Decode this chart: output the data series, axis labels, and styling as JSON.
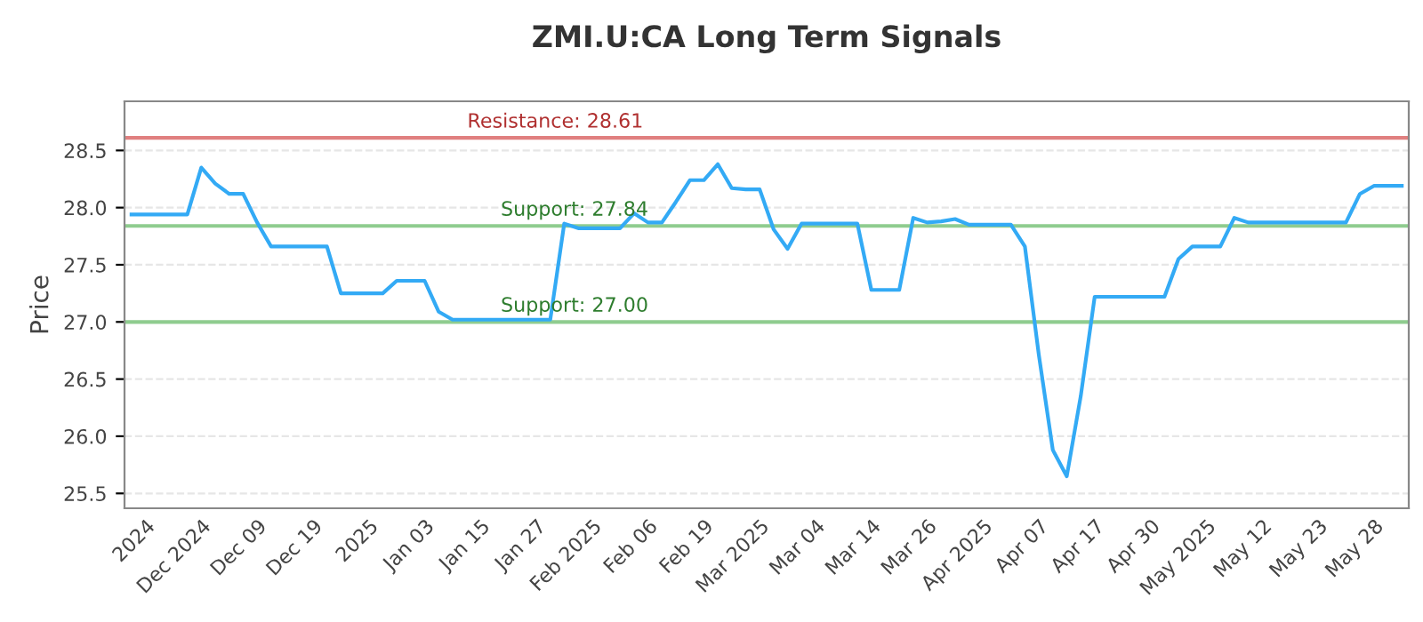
{
  "chart_data": {
    "type": "line",
    "title": "ZMI.U:CA Long Term Signals",
    "ylabel": "Price",
    "categories": [
      null,
      "2024",
      null,
      null,
      null,
      "Dec 2024",
      null,
      null,
      null,
      "Dec 09",
      null,
      null,
      null,
      "Dec 19",
      null,
      null,
      null,
      "2025",
      null,
      null,
      null,
      "Jan 03",
      null,
      null,
      null,
      "Jan 15",
      null,
      null,
      null,
      "Jan 27",
      null,
      null,
      null,
      "Feb 2025",
      null,
      null,
      null,
      "Feb 06",
      null,
      null,
      null,
      "Feb 19",
      null,
      null,
      null,
      "Mar 2025",
      null,
      null,
      null,
      "Mar 04",
      null,
      null,
      null,
      "Mar 14",
      null,
      null,
      null,
      "Mar 26",
      null,
      null,
      null,
      "Apr 2025",
      null,
      null,
      null,
      "Apr 07",
      null,
      null,
      null,
      "Apr 17",
      null,
      null,
      null,
      "Apr 30",
      null,
      null,
      null,
      "May 2025",
      null,
      null,
      null,
      "May 12",
      null,
      null,
      null,
      "May 23",
      null,
      null,
      null,
      "May 28",
      null,
      null
    ],
    "series": [
      {
        "color": "#33aaf5",
        "values": [
          27.94,
          27.94,
          27.94,
          27.94,
          27.94,
          28.35,
          28.21,
          28.12,
          28.12,
          27.87,
          27.66,
          27.66,
          27.66,
          27.66,
          27.66,
          27.25,
          27.25,
          27.25,
          27.25,
          27.36,
          27.36,
          27.36,
          27.09,
          27.02,
          27.02,
          27.02,
          27.02,
          27.02,
          27.02,
          27.02,
          27.02,
          27.86,
          27.82,
          27.82,
          27.82,
          27.82,
          27.95,
          27.87,
          27.87,
          28.05,
          28.24,
          28.24,
          28.38,
          28.17,
          28.16,
          28.16,
          27.81,
          27.64,
          27.86,
          27.86,
          27.86,
          27.86,
          27.86,
          27.28,
          27.28,
          27.28,
          27.91,
          27.87,
          27.88,
          27.9,
          27.85,
          27.85,
          27.85,
          27.85,
          27.66,
          26.71,
          25.88,
          25.65,
          26.35,
          27.22,
          27.22,
          27.22,
          27.22,
          27.22,
          27.22,
          27.55,
          27.66,
          27.66,
          27.66,
          27.91,
          27.87,
          27.87,
          27.87,
          27.87,
          27.87,
          27.87,
          27.87,
          27.87,
          28.12,
          28.19,
          28.19,
          28.19
        ]
      }
    ],
    "ylim": [
      25.37,
      28.93
    ],
    "yticks": [
      25.5,
      {
        "value": 26,
        "label": "26.0"
      },
      26.5,
      {
        "value": 27,
        "label": "27.0"
      },
      27.5,
      {
        "value": 28,
        "label": "28.0"
      },
      28.5
    ],
    "grid": "y",
    "line_style": "solid",
    "marker": "none",
    "ref_lines": [
      {
        "axis": "y",
        "value": 28.61,
        "label": "Resistance: 28.61",
        "color": "#e08080"
      },
      {
        "axis": "y",
        "value": 27.84,
        "label": "Support: 27.84",
        "color": "#8fcc8f"
      },
      {
        "axis": "y",
        "value": 27.0,
        "label": "Support: 27.00",
        "color": "#8fcc8f"
      }
    ]
  }
}
